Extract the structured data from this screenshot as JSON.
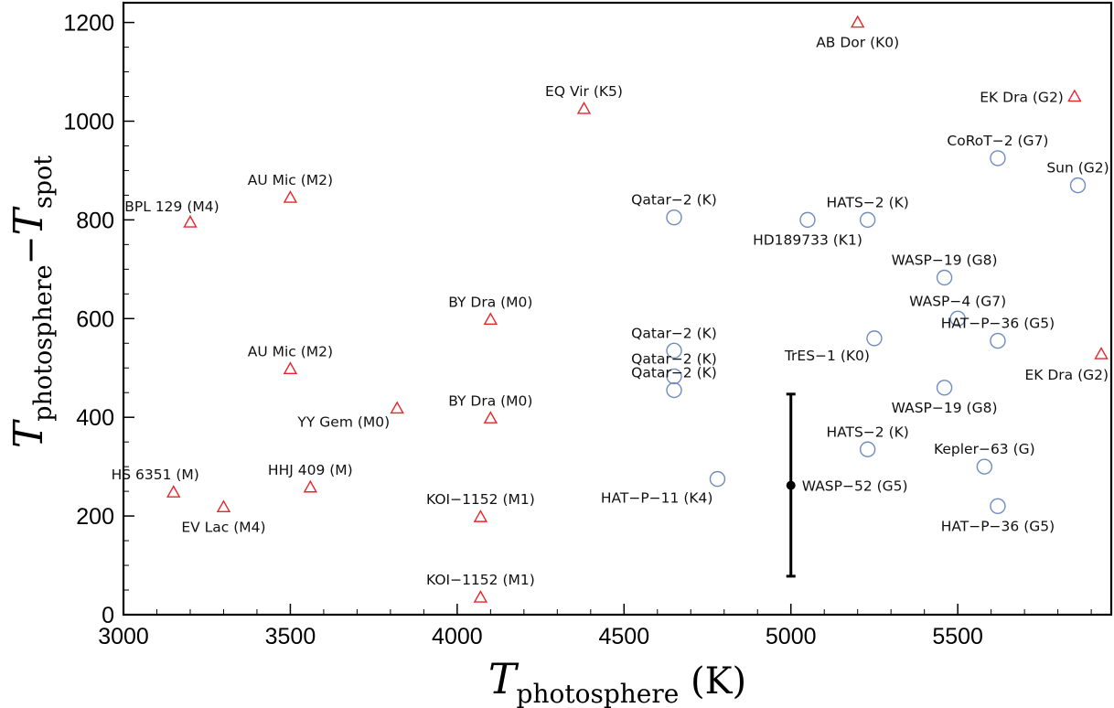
{
  "chart_data": {
    "type": "scatter",
    "xlim": [
      3000,
      5960
    ],
    "ylim": [
      0,
      1240
    ],
    "xticks": [
      3000,
      3500,
      4000,
      4500,
      5000,
      5500
    ],
    "yticks": [
      0,
      200,
      400,
      600,
      800,
      1000,
      1200
    ],
    "xlabel": {
      "main": "T",
      "sub": "photosphere",
      "unit": " (K)"
    },
    "ylabel": {
      "main1": "T",
      "sub1": "photosphere",
      "minus": "−",
      "main2": "T",
      "sub2": "spot"
    },
    "colors": {
      "triangle": "#e8252a",
      "circle": "#6f8cc2",
      "errorbar": "#000000"
    },
    "series": [
      {
        "marker": "triangle",
        "points": [
          {
            "x": 5200,
            "y": 1200,
            "label": "AB Dor (K0)"
          },
          {
            "x": 4380,
            "y": 1025,
            "label": "EQ Vir (K5)"
          },
          {
            "x": 5850,
            "y": 1050,
            "label": "EK  Dra (G2)"
          },
          {
            "x": 5930,
            "y": 528,
            "label": "EK  Dra (G2)"
          },
          {
            "x": 3500,
            "y": 845,
            "label": "AU Mic (M2)"
          },
          {
            "x": 3200,
            "y": 795,
            "label": "BPL 129 (M4)"
          },
          {
            "x": 4100,
            "y": 598,
            "label": "BY Dra (M0)"
          },
          {
            "x": 3500,
            "y": 498,
            "label": "AU Mic (M2)"
          },
          {
            "x": 4100,
            "y": 398,
            "label": "BY Dra (M0)"
          },
          {
            "x": 3820,
            "y": 418,
            "label": "YY Gem (M0)"
          },
          {
            "x": 3150,
            "y": 248,
            "label": "HS 6351 (M)"
          },
          {
            "x": 3300,
            "y": 218,
            "label": "EV Lac (M4)"
          },
          {
            "x": 3560,
            "y": 258,
            "label": "HHJ 409 (M)"
          },
          {
            "x": 4070,
            "y": 198,
            "label": "KOI−1152 (M1)"
          },
          {
            "x": 4070,
            "y": 35,
            "label": "KOI−1152 (M1)"
          }
        ]
      },
      {
        "marker": "circle",
        "points": [
          {
            "x": 5620,
            "y": 925,
            "label": "CoRoT−2 (G7)"
          },
          {
            "x": 5860,
            "y": 870,
            "label": "Sun (G2)"
          },
          {
            "x": 4650,
            "y": 805,
            "label": "Qatar−2 (K)"
          },
          {
            "x": 5050,
            "y": 800,
            "label": "HD189733 (K1)"
          },
          {
            "x": 5230,
            "y": 800,
            "label": "HATS−2 (K)"
          },
          {
            "x": 5460,
            "y": 683,
            "label": "WASP−19 (G8)"
          },
          {
            "x": 5500,
            "y": 600,
            "label": "WASP−4 (G7)"
          },
          {
            "x": 5620,
            "y": 555,
            "label": "HAT−P−36 (G5)"
          },
          {
            "x": 5250,
            "y": 560,
            "label": "TrES−1 (K0)"
          },
          {
            "x": 4650,
            "y": 535,
            "label": "Qatar−2 (K)"
          },
          {
            "x": 4650,
            "y": 483,
            "label": "Qatar−2 (K)"
          },
          {
            "x": 4650,
            "y": 455,
            "label": "Qatar−2 (K)"
          },
          {
            "x": 5460,
            "y": 460,
            "label": "WASP−19 (G8)"
          },
          {
            "x": 5230,
            "y": 335,
            "label": "HATS−2 (K)"
          },
          {
            "x": 5580,
            "y": 300,
            "label": "Kepler−63 (G)"
          },
          {
            "x": 4780,
            "y": 275,
            "label": "HAT−P−11 (K4)"
          },
          {
            "x": 5620,
            "y": 220,
            "label": "HAT−P−36 (G5)"
          }
        ]
      },
      {
        "marker": "errorbar",
        "points": [
          {
            "x": 5000,
            "y": 262,
            "ymin": 78,
            "ymax": 447,
            "label": "WASP−52 (G5)"
          }
        ]
      }
    ]
  }
}
